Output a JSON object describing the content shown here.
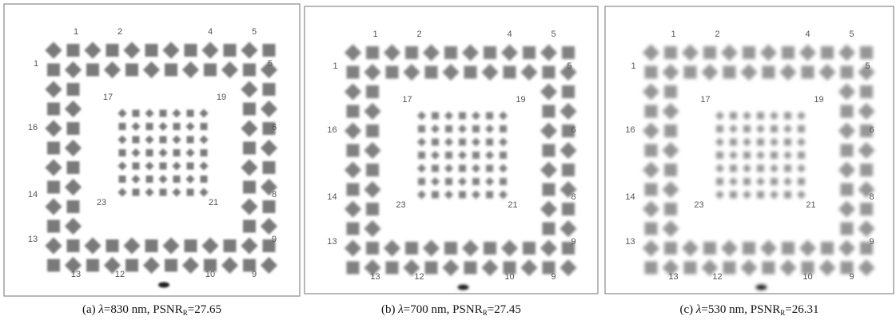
{
  "panels": [
    {
      "tag": "(a) ",
      "symbol": "λ",
      "wavelength": "=830 nm, PSNR",
      "subscript": "R",
      "psnr": "=27.65"
    },
    {
      "tag": "(b) ",
      "symbol": "λ",
      "wavelength": "=700 nm, PSNR",
      "subscript": "R",
      "psnr": "=27.45"
    },
    {
      "tag": "(c) ",
      "symbol": "λ",
      "wavelength": "=530 nm, PSNR",
      "subscript": "R",
      "psnr": "=26.31"
    }
  ],
  "mask_labels": [
    "1",
    "2",
    "4",
    "5",
    "1",
    "5",
    "17",
    "19",
    "16",
    "6",
    "14",
    "23",
    "21",
    "8",
    "13",
    "9",
    "13",
    "12",
    "10",
    "9"
  ]
}
